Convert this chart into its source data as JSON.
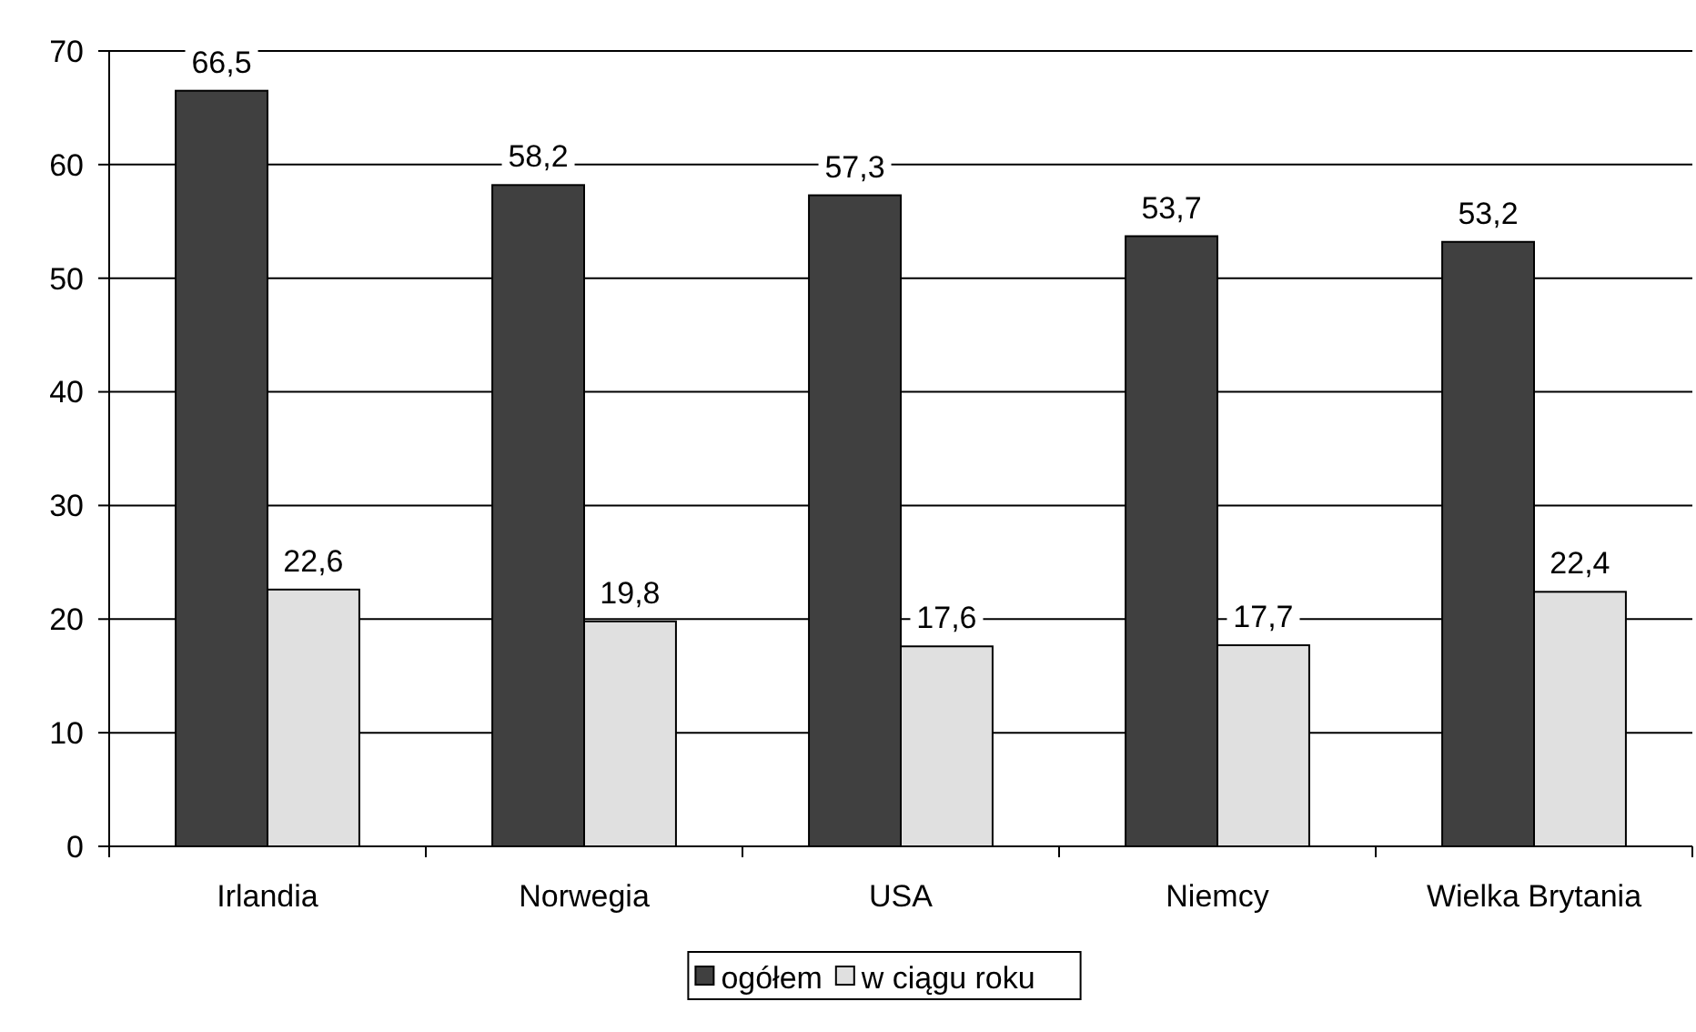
{
  "chart_data": {
    "type": "bar",
    "categories": [
      "Irlandia",
      "Norwegia",
      "USA",
      "Niemcy",
      "Wielka Brytania"
    ],
    "series": [
      {
        "name": "ogółem",
        "color": "#404040",
        "values": [
          66.5,
          58.2,
          57.3,
          53.7,
          53.2
        ],
        "value_labels": [
          "66,5",
          "58,2",
          "57,3",
          "53,7",
          "53,2"
        ]
      },
      {
        "name": "w ciągu roku",
        "color": "#e0e0e0",
        "values": [
          22.6,
          19.8,
          17.6,
          17.7,
          22.4
        ],
        "value_labels": [
          "22,6",
          "19,8",
          "17,6",
          "17,7",
          "22,4"
        ]
      }
    ],
    "ylim": [
      0,
      70
    ],
    "yticks": [
      0,
      10,
      20,
      30,
      40,
      50,
      60,
      70
    ],
    "grid": "y",
    "legend": "bottom"
  }
}
